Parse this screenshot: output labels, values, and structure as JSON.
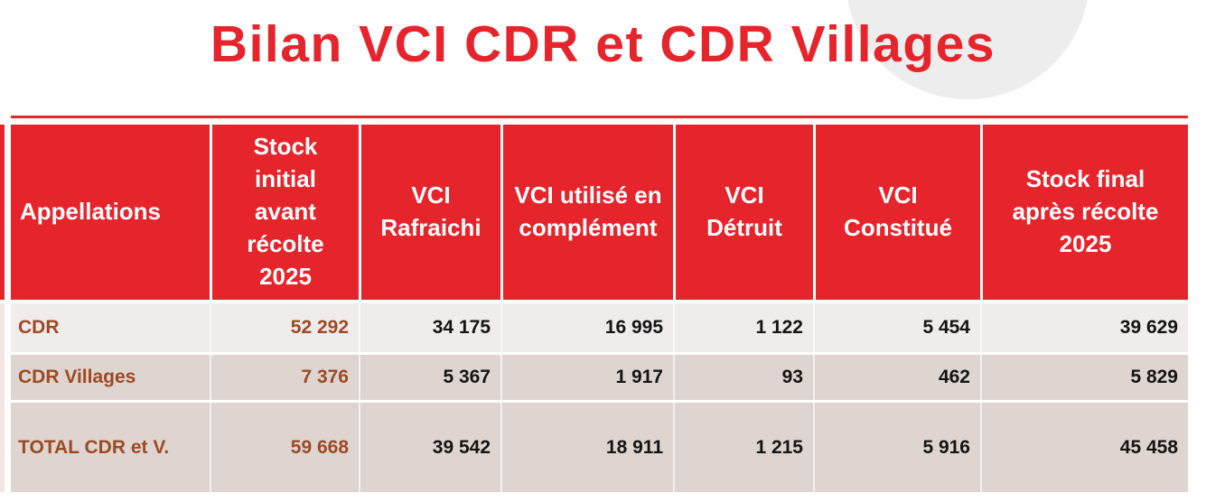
{
  "title": "Bilan VCI CDR et CDR Villages",
  "colors": {
    "accent_red": "#e5242b",
    "row_light_bg": "#f0ecec",
    "row_dark_bg": "#ded5d1",
    "label_brown": "#9c4a23",
    "ring_watermark_gray": "#ededee"
  },
  "table": {
    "columns": [
      "Appellations",
      "Stock initial avant récolte 2025",
      "VCI Rafraichi",
      "VCI utilisé en complément",
      "VCI Détruit",
      "VCI Constitué",
      "Stock final après récolte 2025"
    ],
    "rows": [
      {
        "label": "CDR",
        "values": [
          "52 292",
          "34 175",
          "16 995",
          "1 122",
          "5 454",
          "39 629"
        ]
      },
      {
        "label": "CDR Villages",
        "values": [
          "7 376",
          "5 367",
          "1 917",
          "93",
          "462",
          "5 829"
        ]
      },
      {
        "label": "TOTAL CDR et V.",
        "values": [
          "59 668",
          "39 542",
          "18 911",
          "1 215",
          "5 916",
          "45 458"
        ]
      }
    ]
  }
}
